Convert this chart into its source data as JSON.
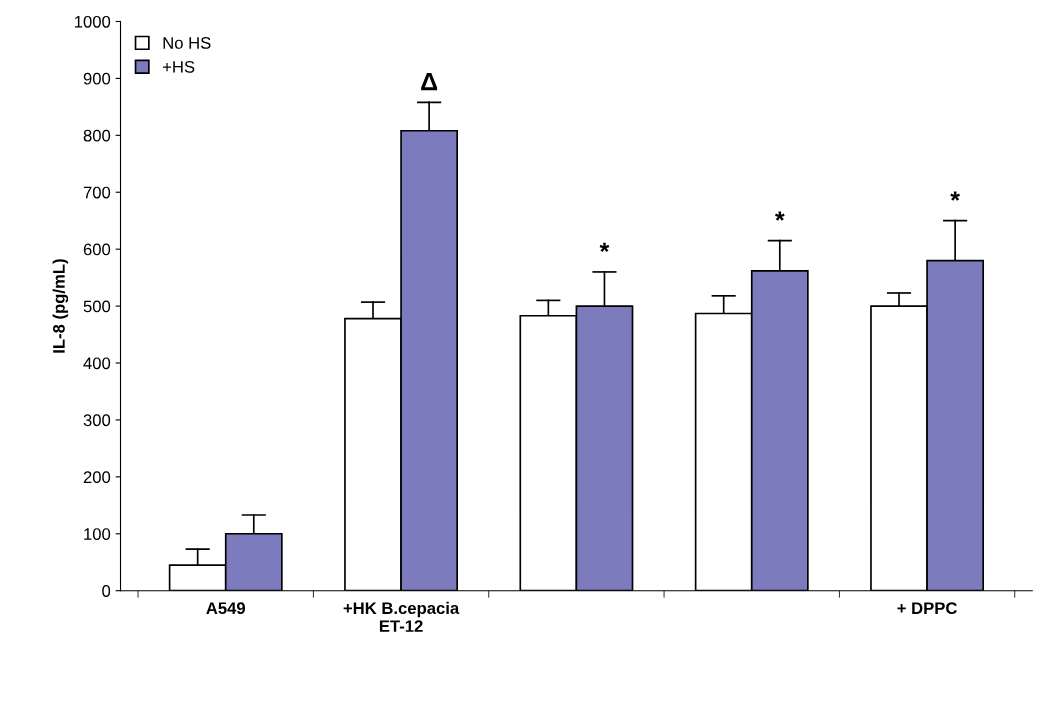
{
  "chart_data": {
    "type": "bar",
    "ylabel": "IL-8 (pg/mL)",
    "categories": [
      "A549",
      "+HK B.cepacia\nET-12",
      null,
      null,
      "+ DPPC"
    ],
    "series": [
      {
        "name": "No HS",
        "color": "#ffffff",
        "values": [
          45,
          478,
          483,
          487,
          500
        ],
        "errors": [
          [
            45,
            73
          ],
          [
            478,
            507
          ],
          [
            483,
            510
          ],
          [
            487,
            518
          ],
          [
            500,
            523
          ]
        ]
      },
      {
        "name": "+HS",
        "color": "#7b7bbd",
        "values": [
          100,
          808,
          500,
          562,
          580
        ],
        "errors": [
          [
            100,
            133
          ],
          [
            808,
            858
          ],
          [
            500,
            560
          ],
          [
            562,
            615
          ],
          [
            580,
            650
          ]
        ],
        "value_labels": [
          null,
          "Δ",
          "*",
          "*",
          "*"
        ]
      }
    ],
    "ylim": [
      0,
      1000
    ],
    "yticks": [
      0,
      100,
      200,
      300,
      400,
      500,
      600,
      700,
      800,
      900,
      1000
    ],
    "grid": false,
    "legend": "top left"
  }
}
